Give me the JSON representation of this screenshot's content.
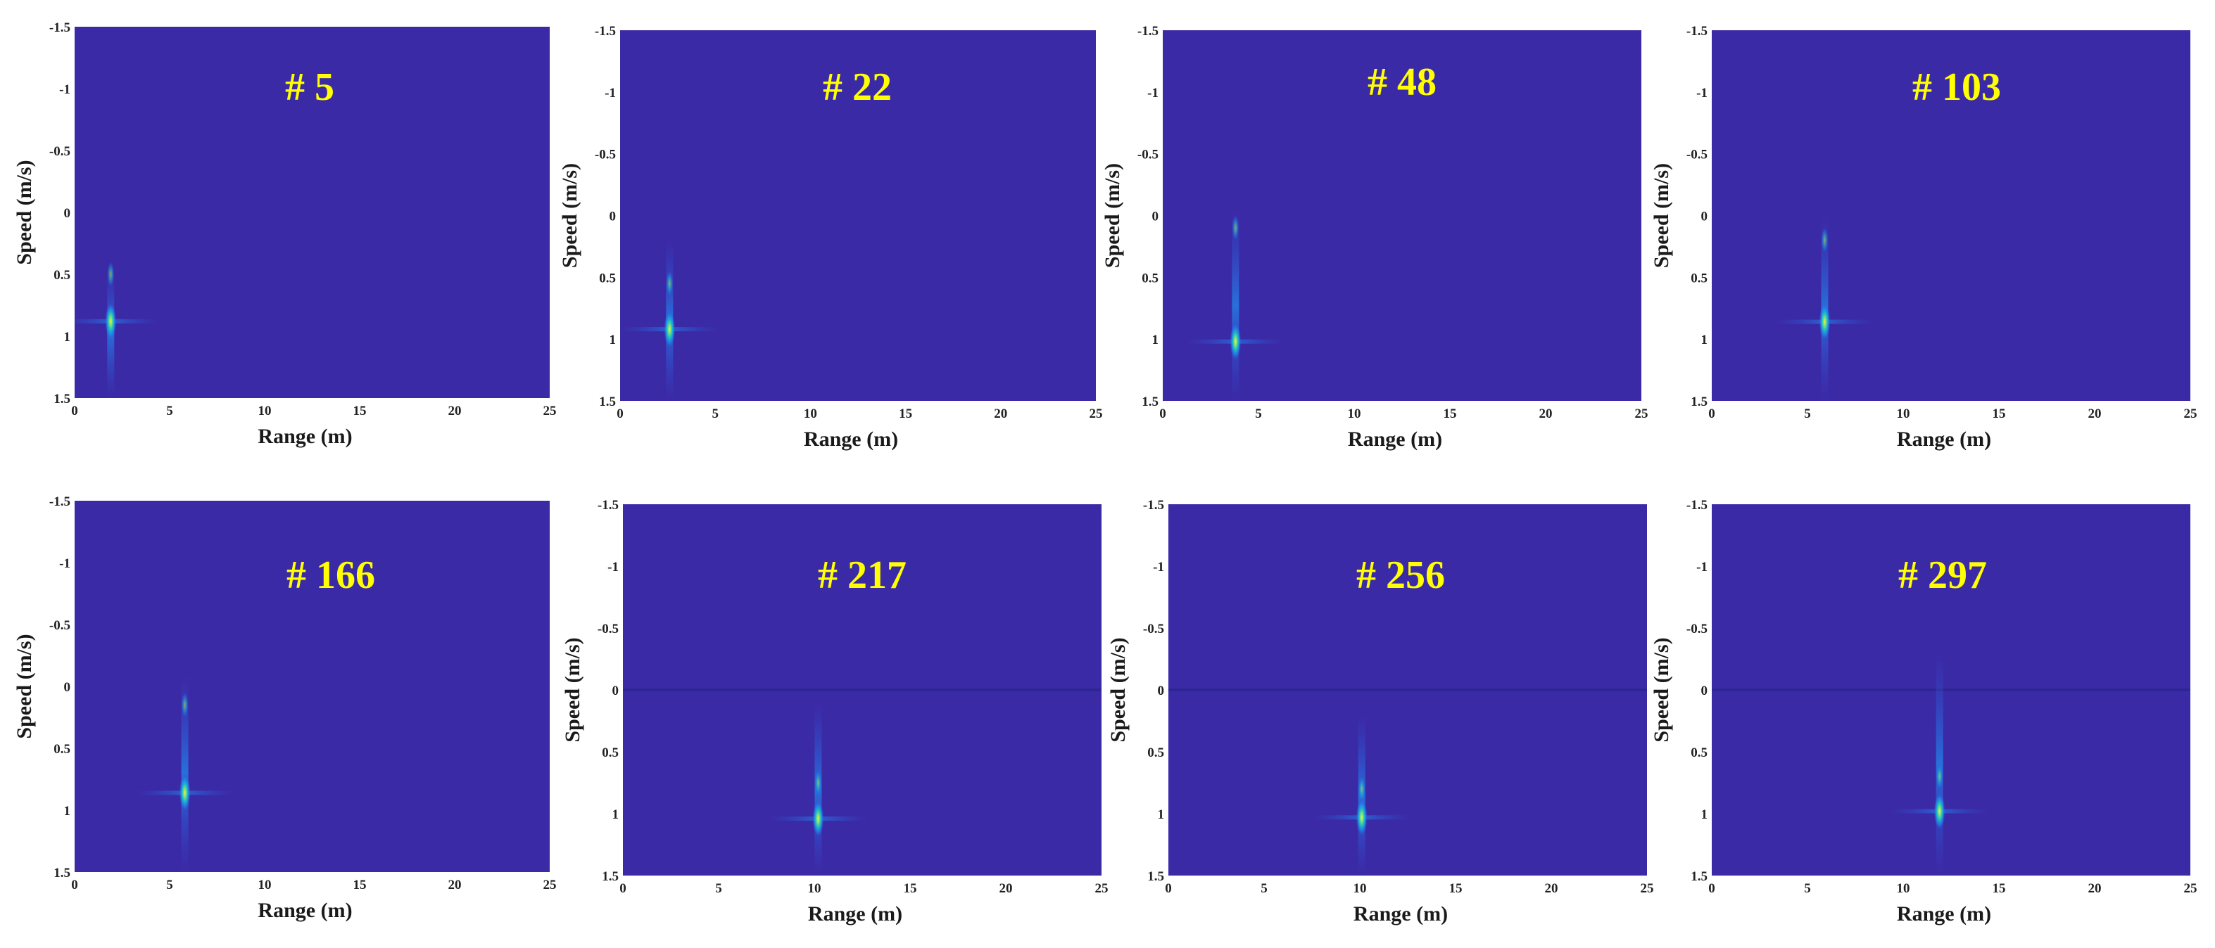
{
  "figure": {
    "background": "#ffffff",
    "plot_background": "#3b2aa6",
    "title_color": "#ffff00",
    "colormap": [
      "#3b2aa6",
      "#2f54e0",
      "#1f8ef0",
      "#18c0c8",
      "#6ee08a",
      "#f2f22a"
    ]
  },
  "chart_data": [
    {
      "type": "heatmap",
      "title": "# 5",
      "xlabel": "Range (m)",
      "ylabel": "Speed (m/s)",
      "xlim": [
        0,
        25
      ],
      "ylim": [
        -1.5,
        1.5
      ],
      "xticks": [
        "0",
        "5",
        "10",
        "15",
        "20",
        "25"
      ],
      "yticks": [
        "-1.5",
        "-1",
        "-0.5",
        "0",
        "0.5",
        "1",
        "1.5"
      ],
      "target": {
        "range": 1.9,
        "speed": 0.88,
        "spread_lo": 0.45,
        "spread_hi": 1.5,
        "echo_speed": 0.5
      }
    },
    {
      "type": "heatmap",
      "title": "# 22",
      "xlabel": "Range (m)",
      "ylabel": "Speed (m/s)",
      "xlim": [
        0,
        25
      ],
      "ylim": [
        -1.5,
        1.5
      ],
      "xticks": [
        "0",
        "5",
        "10",
        "15",
        "20",
        "25"
      ],
      "yticks": [
        "-1.5",
        "-1",
        "-0.5",
        "0",
        "0.5",
        "1",
        "1.5"
      ],
      "target": {
        "range": 2.6,
        "speed": 0.92,
        "spread_lo": 0.2,
        "spread_hi": 1.5,
        "echo_speed": 0.55
      }
    },
    {
      "type": "heatmap",
      "title": "# 48",
      "xlabel": "Range (m)",
      "ylabel": "Speed (m/s)",
      "xlim": [
        0,
        25
      ],
      "ylim": [
        -1.5,
        1.5
      ],
      "xticks": [
        "0",
        "5",
        "10",
        "15",
        "20",
        "25"
      ],
      "yticks": [
        "-1.5",
        "-1",
        "-0.5",
        "0",
        "0.5",
        "1",
        "1.5"
      ],
      "target": {
        "range": 3.8,
        "speed": 1.02,
        "spread_lo": -0.05,
        "spread_hi": 1.5,
        "echo_speed": 0.1
      }
    },
    {
      "type": "heatmap",
      "title": "# 103",
      "xlabel": "Range (m)",
      "ylabel": "Speed (m/s)",
      "xlim": [
        0,
        25
      ],
      "ylim": [
        -1.5,
        1.5
      ],
      "xticks": [
        "0",
        "5",
        "10",
        "15",
        "20",
        "25"
      ],
      "yticks": [
        "-1.5",
        "-1",
        "-0.5",
        "0",
        "0.5",
        "1",
        "1.5"
      ],
      "target": {
        "range": 5.9,
        "speed": 0.86,
        "spread_lo": 0.0,
        "spread_hi": 1.5,
        "echo_speed": 0.2
      }
    },
    {
      "type": "heatmap",
      "title": "# 166",
      "xlabel": "Range (m)",
      "ylabel": "Speed (m/s)",
      "xlim": [
        0,
        25
      ],
      "ylim": [
        -1.5,
        1.5
      ],
      "xticks": [
        "0",
        "5",
        "10",
        "15",
        "20",
        "25"
      ],
      "yticks": [
        "-1.5",
        "-1",
        "-0.5",
        "0",
        "0.5",
        "1",
        "1.5"
      ],
      "target": {
        "range": 5.8,
        "speed": 0.86,
        "spread_lo": -0.1,
        "spread_hi": 1.5,
        "echo_speed": 0.15
      }
    },
    {
      "type": "heatmap",
      "title": "# 217",
      "xlabel": "Range (m)",
      "ylabel": "Speed (m/s)",
      "xlim": [
        0,
        25
      ],
      "ylim": [
        -1.5,
        1.5
      ],
      "xticks": [
        "0",
        "5",
        "10",
        "15",
        "20",
        "25"
      ],
      "yticks": [
        "-1.5",
        "-1",
        "-0.5",
        "0",
        "0.5",
        "1",
        "1.5"
      ],
      "target": {
        "range": 10.2,
        "speed": 1.04,
        "spread_lo": 0.1,
        "spread_hi": 1.5,
        "echo_speed": 0.75
      }
    },
    {
      "type": "heatmap",
      "title": "# 256",
      "xlabel": "Range (m)",
      "ylabel": "Speed (m/s)",
      "xlim": [
        0,
        25
      ],
      "ylim": [
        -1.5,
        1.5
      ],
      "xticks": [
        "0",
        "5",
        "10",
        "15",
        "20",
        "25"
      ],
      "yticks": [
        "-1.5",
        "-1",
        "-0.5",
        "0",
        "0.5",
        "1",
        "1.5"
      ],
      "target": {
        "range": 10.1,
        "speed": 1.03,
        "spread_lo": 0.2,
        "spread_hi": 1.5,
        "echo_speed": 0.8
      }
    },
    {
      "type": "heatmap",
      "title": "# 297",
      "xlabel": "Range (m)",
      "ylabel": "Speed (m/s)",
      "xlim": [
        0,
        25
      ],
      "ylim": [
        -1.5,
        1.5
      ],
      "xticks": [
        "0",
        "5",
        "10",
        "15",
        "20",
        "25"
      ],
      "yticks": [
        "-1.5",
        "-1",
        "-0.5",
        "0",
        "0.5",
        "1",
        "1.5"
      ],
      "target": {
        "range": 11.9,
        "speed": 0.98,
        "spread_lo": -0.3,
        "spread_hi": 1.5,
        "echo_speed": 0.7
      }
    }
  ]
}
